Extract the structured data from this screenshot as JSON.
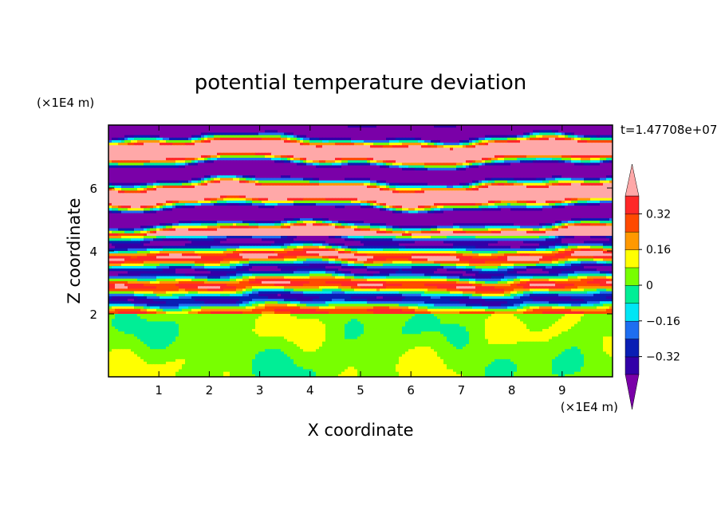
{
  "chart_data": {
    "type": "heatmap",
    "title": "potential temperature deviation",
    "time_label": "t=1.47708e+07",
    "xlabel": "X coordinate",
    "ylabel": "Z coordinate",
    "x_unit": "(×1E4 m)",
    "z_unit": "(×1E4 m)",
    "xlim": [
      0,
      10
    ],
    "ylim": [
      0,
      8
    ],
    "x_ticks": [
      1,
      2,
      3,
      4,
      5,
      6,
      7,
      8,
      9
    ],
    "y_ticks": [
      2,
      4,
      6
    ],
    "colorbar": {
      "levels": [
        -0.4,
        -0.32,
        -0.24,
        -0.16,
        -0.08,
        0,
        0.08,
        0.16,
        0.24,
        0.32,
        0.4
      ],
      "colors": [
        "#7a00a8",
        "#3200a8",
        "#0a1eb4",
        "#1e6ef0",
        "#00e6f5",
        "#00ee96",
        "#78ff00",
        "#ffff00",
        "#ff9900",
        "#ff4a00",
        "#ff2828",
        "#ffa8a8"
      ],
      "tick_labels": [
        {
          "value": 0.32,
          "label": "0.32"
        },
        {
          "value": 0.16,
          "label": "0.16"
        },
        {
          "value": 0,
          "label": "0"
        },
        {
          "value": -0.16,
          "label": "-0.16"
        },
        {
          "value": -0.32,
          "label": "-0.32"
        }
      ]
    },
    "field_description_bands": [
      {
        "z_range": [
          0,
          2
        ],
        "dominant": "green/light-green cellular pattern (near 0 to 0.08)"
      },
      {
        "z_range": [
          2,
          4.5
        ],
        "dominant": "mixed thin layers, all levels"
      },
      {
        "z_range": [
          4.5,
          8
        ],
        "dominant": "alternating pink (>0.4) and purple (<-0.4) layers"
      }
    ]
  }
}
